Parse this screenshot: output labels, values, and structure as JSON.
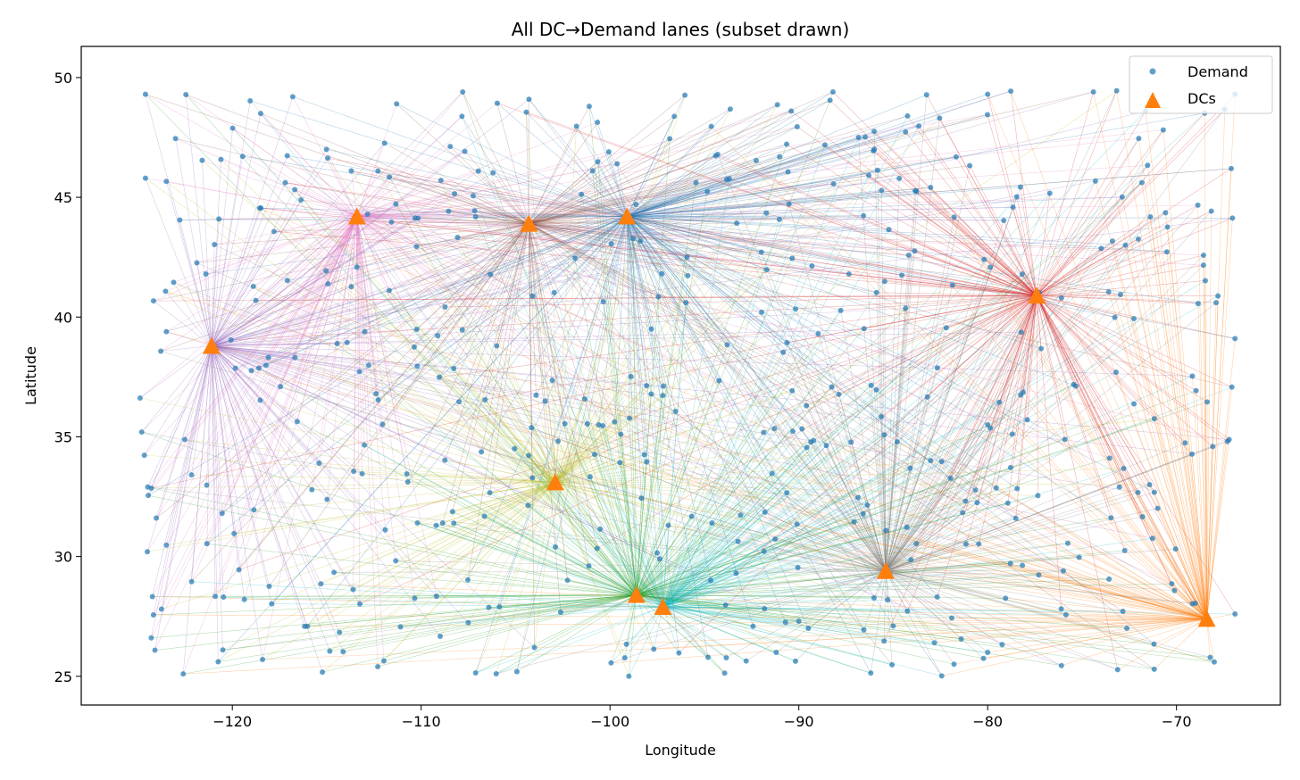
{
  "chart_data": {
    "type": "scatter",
    "title": "All DC→Demand lanes (subset drawn)",
    "xlabel": "Longitude",
    "ylabel": "Latitude",
    "xlim": [
      -128,
      -64.5
    ],
    "ylim": [
      23.8,
      51.3
    ],
    "xticks": [
      -120,
      -110,
      -100,
      -90,
      -80,
      -70
    ],
    "xtick_labels": [
      "−120",
      "−110",
      "−100",
      "−90",
      "−80",
      "−70"
    ],
    "yticks": [
      25,
      30,
      35,
      40,
      45,
      50
    ],
    "yticks_labels": [
      "25",
      "30",
      "35",
      "40",
      "45",
      "50"
    ],
    "grid": false,
    "legend": {
      "position": "top-right",
      "entries": [
        {
          "label": "Demand",
          "marker": "circle",
          "color": "#1f77b4"
        },
        {
          "label": "DCs",
          "marker": "triangle",
          "color": "#ff7f0e"
        }
      ]
    },
    "dcs": [
      {
        "x": -113.4,
        "y": 44.2,
        "lane_color": "#e377c2"
      },
      {
        "x": -104.3,
        "y": 43.9,
        "lane_color": "#8c564b"
      },
      {
        "x": -99.1,
        "y": 44.2,
        "lane_color": "#1f77b4"
      },
      {
        "x": -121.1,
        "y": 38.8,
        "lane_color": "#9467bd"
      },
      {
        "x": -77.4,
        "y": 40.9,
        "lane_color": "#d62728"
      },
      {
        "x": -102.9,
        "y": 33.1,
        "lane_color": "#bcbd22"
      },
      {
        "x": -98.6,
        "y": 28.4,
        "lane_color": "#2ca02c"
      },
      {
        "x": -97.2,
        "y": 27.9,
        "lane_color": "#17becf"
      },
      {
        "x": -85.4,
        "y": 29.4,
        "lane_color": "#7f7f7f"
      },
      {
        "x": -68.4,
        "y": 27.4,
        "lane_color": "#ff7f0e"
      }
    ],
    "demand_count": 500,
    "demand_points_note": "",
    "demand_sample": [
      [
        -124.6,
        49.3
      ],
      [
        -124.6,
        45.8
      ],
      [
        -124.8,
        35.2
      ],
      [
        -124.5,
        30.2
      ],
      [
        -122.6,
        25.1
      ],
      [
        -121.4,
        41.8
      ],
      [
        -118.5,
        48.5
      ],
      [
        -116.8,
        49.2
      ],
      [
        -113.7,
        46.1
      ],
      [
        -111.3,
        48.9
      ],
      [
        -107.8,
        49.4
      ],
      [
        -101.1,
        48.8
      ],
      [
        -90.4,
        48.6
      ],
      [
        -80,
        49.3
      ],
      [
        -74.4,
        49.4
      ],
      [
        -66.9,
        49.3
      ],
      [
        -67.1,
        46.2
      ],
      [
        -66.9,
        39.1
      ],
      [
        -67.3,
        34.8
      ],
      [
        -66.9,
        27.6
      ],
      [
        -68.0,
        25.6
      ],
      [
        -99.0,
        25.0
      ],
      [
        -104.0,
        26.2
      ],
      [
        -112.3,
        25.4
      ],
      [
        -118.4,
        25.7
      ],
      [
        -80,
        26
      ],
      [
        -85.0,
        27.1
      ],
      [
        -90.0,
        27.3
      ],
      [
        -94.6,
        31.4
      ],
      [
        -89.6,
        36.3
      ],
      [
        -80.0,
        35.5
      ],
      [
        -73.2,
        37.7
      ],
      [
        -110.2,
        31.4
      ],
      [
        -115.4,
        33.9
      ],
      [
        -106.0,
        38.8
      ]
    ]
  }
}
